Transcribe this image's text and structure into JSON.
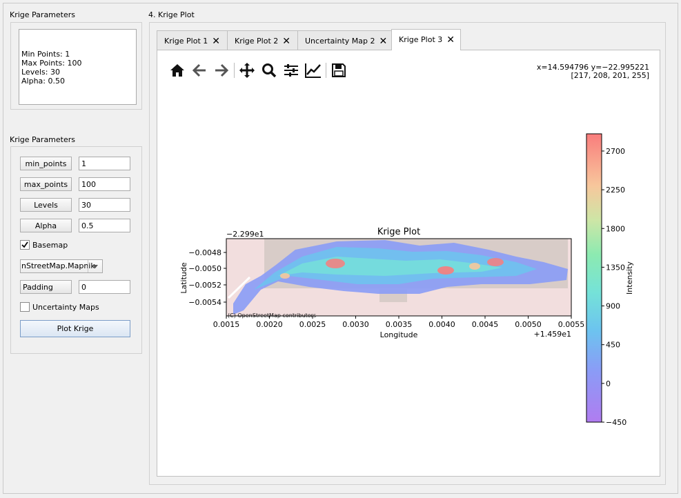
{
  "left": {
    "summary_title": "Krige Parameters",
    "summary_lines": [
      "Min Points: 1",
      "Max Points: 100",
      "Levels: 30",
      "Alpha: 0.50"
    ],
    "params_title": "Krige Parameters",
    "params": [
      {
        "label": "min_points",
        "value": "1"
      },
      {
        "label": "max_points",
        "value": "100"
      },
      {
        "label": "Levels",
        "value": "30"
      },
      {
        "label": "Alpha",
        "value": "0.5"
      }
    ],
    "basemap_label": "Basemap",
    "basemap_checked": true,
    "tile_select": "nStreetMap.Mapnik",
    "padding_label": "Padding",
    "padding_value": "0",
    "uncertainty_label": "Uncertainty Maps",
    "uncertainty_checked": false,
    "plot_button": "Plot Krige"
  },
  "right": {
    "title": "4. Krige Plot",
    "tabs": [
      {
        "label": "Krige Plot 1",
        "active": false
      },
      {
        "label": "Krige Plot 2",
        "active": false
      },
      {
        "label": "Uncertainty Map 2",
        "active": false
      },
      {
        "label": "Krige Plot 3",
        "active": true
      }
    ],
    "toolbar": {
      "icons": [
        "home-icon",
        "back-arrow-icon",
        "forward-arrow-icon",
        "pan-icon",
        "zoom-icon",
        "configure-subplots-icon",
        "edit-axis-icon",
        "save-icon"
      ]
    },
    "coords_line1": "x=14.594796 y=−22.995221",
    "coords_line2": "[217, 208, 201, 255]"
  },
  "chart_data": {
    "type": "heatmap",
    "title": "Krige Plot",
    "xlabel": "Longitude",
    "ylabel": "Latitude",
    "x_offset_label": "+1.459e1",
    "y_offset_label": "−2.299e1",
    "xticks": [
      "0.0015",
      "0.0020",
      "0.0025",
      "0.0030",
      "0.0035",
      "0.0040",
      "0.0045",
      "0.0050",
      "0.0055"
    ],
    "yticks": [
      "−0.0048",
      "−0.0050",
      "−0.0052",
      "−0.0054"
    ],
    "colorbar_label": "Intensity",
    "colorbar_ticks": [
      "2700",
      "2250",
      "1800",
      "1350",
      "900",
      "450",
      "0",
      "−450"
    ],
    "colorbar_range": [
      -450,
      2900
    ],
    "attribution": "(C) OpenStreetMap contributors",
    "colors": {
      "basemap": "#f2dede",
      "low": "#b07cf0",
      "mid": "#7de7c4",
      "high": "#f97c7c"
    }
  }
}
